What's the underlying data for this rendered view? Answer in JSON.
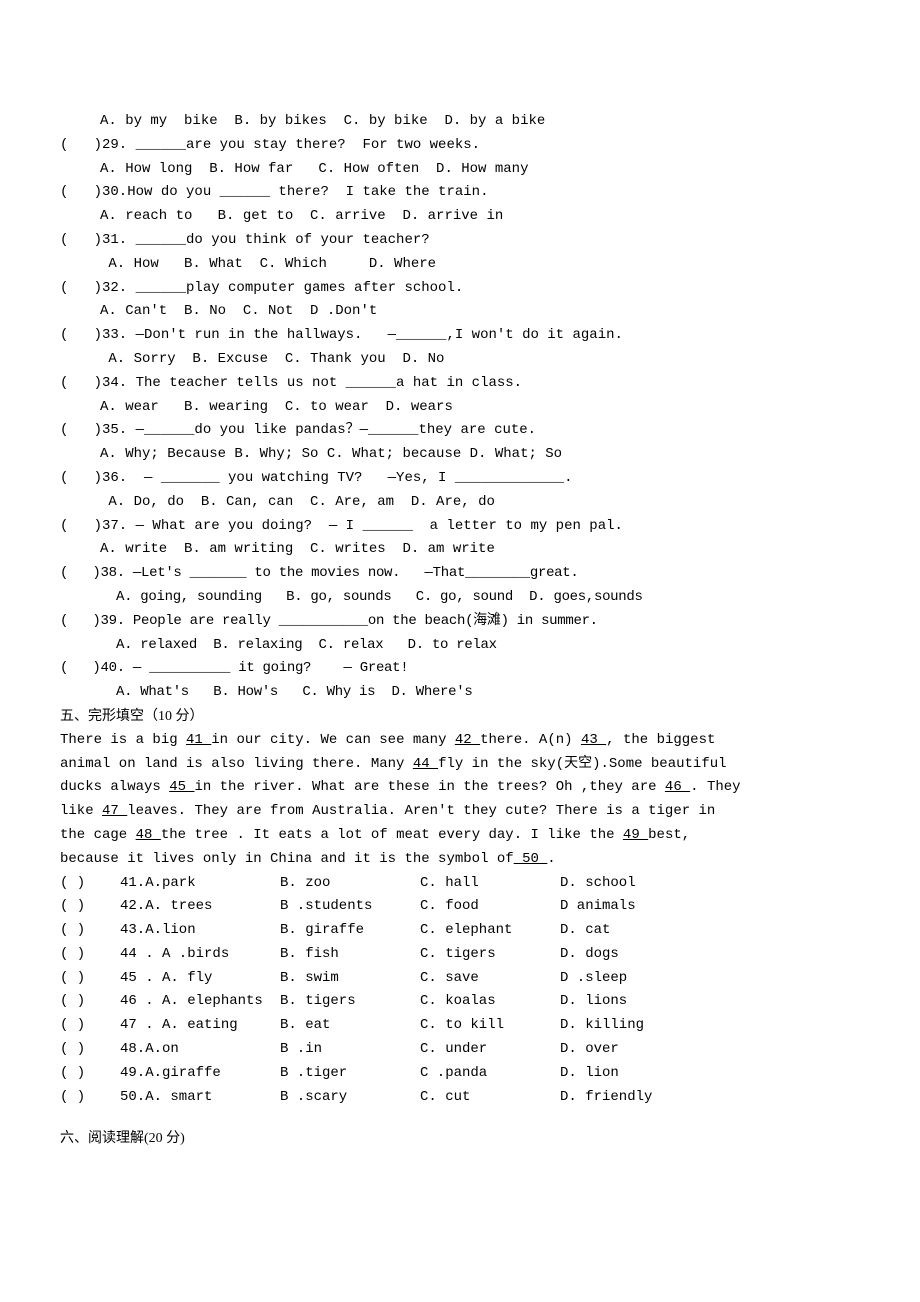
{
  "q28_opts": "A. by my  bike  B. by bikes  C. by bike  D. by a bike",
  "q29": "(   )29. ______are you stay there?  For two weeks.",
  "q29_opts": "A. How long  B. How far   C. How often  D. How many",
  "q30": "(   )30.How do you ______ there?  I take the train.",
  "q30_opts": "A. reach to   B. get to  C. arrive  D. arrive in",
  "q31": "(   )31. ______do you think of your teacher?",
  "q31_opts": " A. How   B. What  C. Which     D. Where",
  "q32": "(   )32. ______play computer games after school.",
  "q32_opts": "A. Can't  B. No  C. Not  D .Don't",
  "q33": "(   )33. —Don't run in the hallways.   —______,I won't do it again.",
  "q33_opts": " A. Sorry  B. Excuse  C. Thank you  D. No",
  "q34": "(   )34. The teacher tells us not ______a hat in class.",
  "q34_opts": "A. wear   B. wearing  C. to wear  D. wears",
  "q35": "(   )35. —______do you like pandas？—______they are cute.",
  "q35_opts": "A. Why; Because B. Why; So C. What; because D. What; So",
  "q36": "(   )36.  — _______ you watching TV?   —Yes, I _____________.",
  "q36_opts": " A. Do, do  B. Can, can  C. Are, am  D. Are, do",
  "q37": "(   )37. — What are you doing?  — I ______  a letter to my pen pal.",
  "q37_opts": "A. write  B. am writing  C. writes  D. am write",
  "q38": "(   )38. —Let's _______ to the movies now.   —That________great.",
  "q38_opts": "A. going, sounding   B. go, sounds   C. go, sound  D. goes,sounds",
  "q39": "(   )39. People are really ___________on the beach(海滩) in summer.",
  "q39_opts": "A. relaxed  B. relaxing  C. relax   D. to relax",
  "q40": "(   )40. — __________ it going?    — Great!",
  "q40_opts": "A. What's   B. How's   C. Why is  D. Where's",
  "section5": "五、完形填空（10 分）",
  "passage": {
    "p1a": "  There is a big ",
    "b41": " 41 ",
    "p1b": " in our city. We can see many ",
    "b42": " 42 ",
    "p1c": " there. A(n) ",
    "b43": " 43 ",
    "p1d": " , the biggest",
    "p2a": "animal on land is also living there. Many ",
    "b44": " 44 ",
    "p2b": " fly in the sky(天空).Some beautiful",
    "p3a": "ducks always ",
    "b45": " 45 ",
    "p3b": "in the river. What are these in the trees? Oh ,they are ",
    "b46": " 46 ",
    "p3c": " . They",
    "p4a": "like ",
    "b47": " 47 ",
    "p4b": " leaves. They are from Australia. Aren't they cute? There is a tiger in",
    "p5a": "the cage ",
    "b48": " 48 ",
    "p5b": " the tree .  It eats a lot of meat every day. I like the ",
    "b49": " 49 ",
    "p5c": " best,",
    "p6a": "because it lives only in China and it is the symbol of",
    "b50": " 50 ",
    "p6b": "."
  },
  "cloze": [
    {
      "n": "41",
      "a": "A.park",
      "b": "B. zoo",
      "c": "C. hall",
      "d": "D. school"
    },
    {
      "n": "42",
      "a": "A. trees",
      "b": "B .students",
      "c": "C. food",
      "d": "D animals"
    },
    {
      "n": "43",
      "a": "A.lion",
      "b": "B. giraffe",
      "c": "C. elephant",
      "d": "D. cat"
    },
    {
      "n": "44",
      "a": ". A .birds",
      "b": "B. fish",
      "c": "C. tigers",
      "d": "D. dogs"
    },
    {
      "n": "45",
      "a": ". A. fly",
      "b": "B. swim",
      "c": "C. save",
      "d": "D .sleep"
    },
    {
      "n": "46",
      "a": ". A. elephants",
      "b": "B. tigers",
      "c": "C. koalas",
      "d": "D. lions"
    },
    {
      "n": "47",
      "a": ". A. eating",
      "b": "B. eat",
      "c": "C. to kill",
      "d": "D. killing"
    },
    {
      "n": "48",
      "a": "A.on",
      "b": "B .in",
      "c": "C. under",
      "d": "D. over"
    },
    {
      "n": "49",
      "a": "A.giraffe",
      "b": "B .tiger",
      "c": "C .panda",
      "d": "D. lion"
    },
    {
      "n": "50",
      "a": "A. smart",
      "b": "B .scary",
      "c": "C. cut",
      "d": "D. friendly"
    }
  ],
  "section6": "六、阅读理解(20 分)"
}
